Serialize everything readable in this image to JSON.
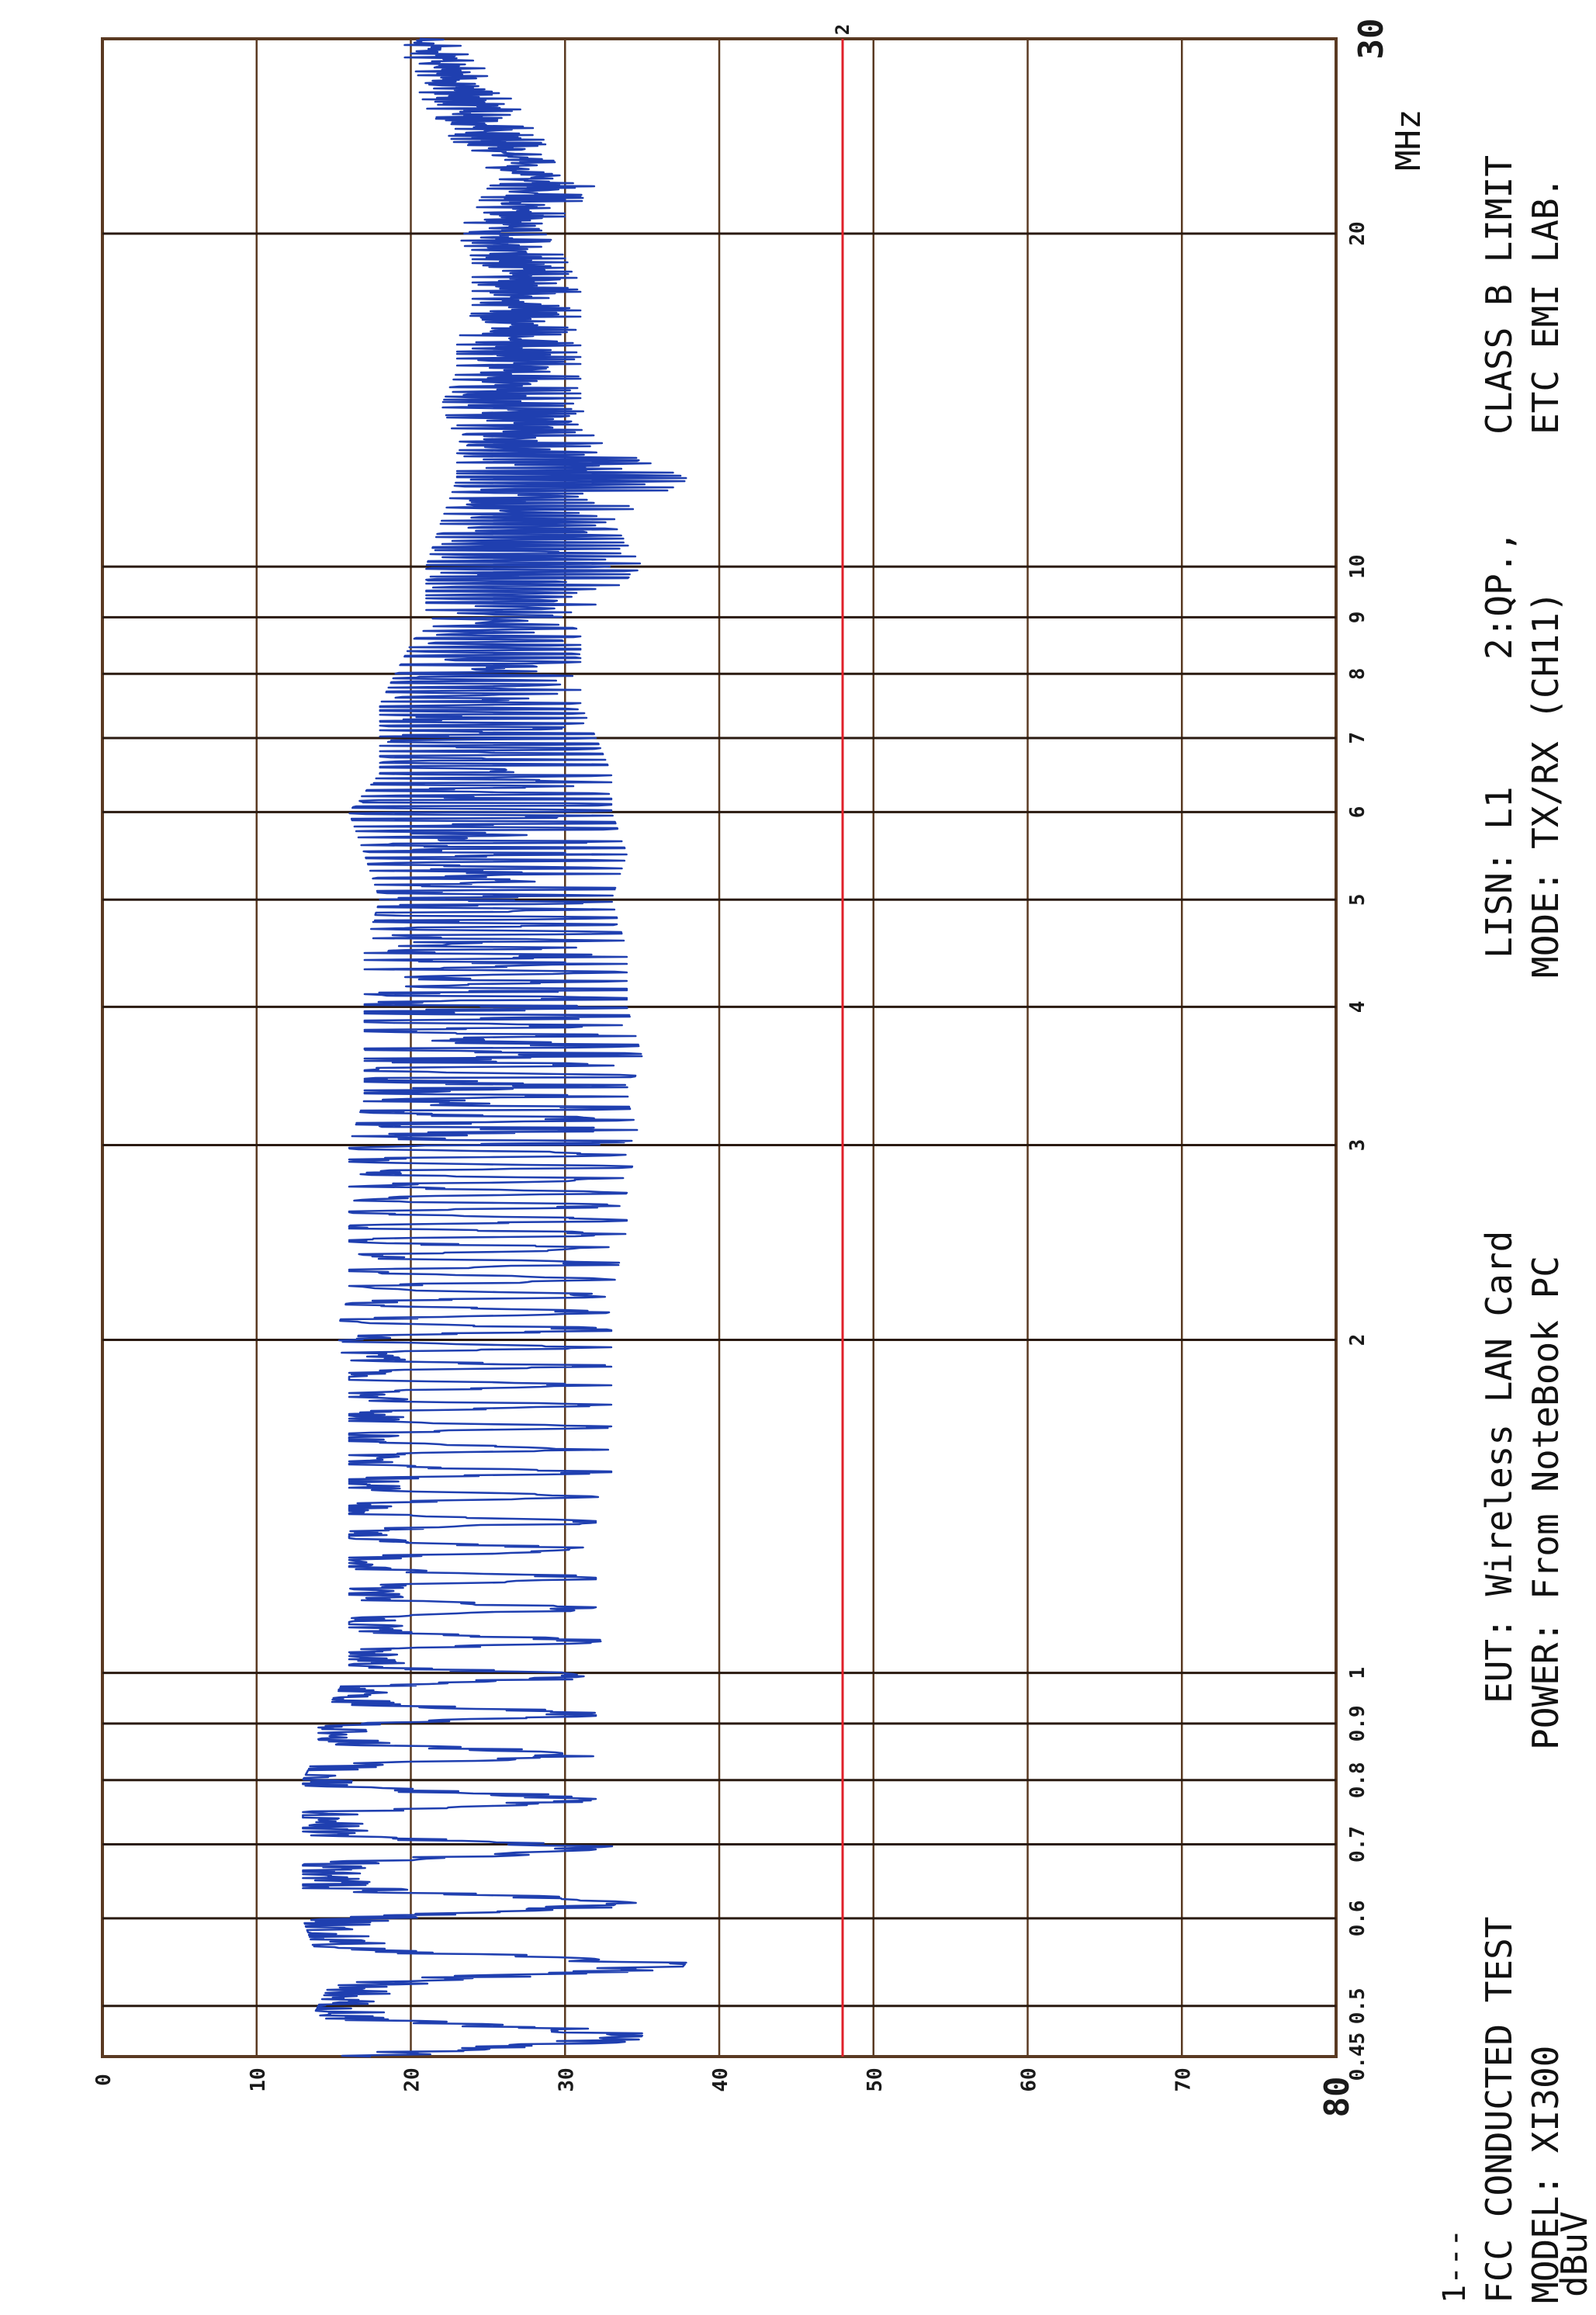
{
  "chart_data": {
    "type": "line",
    "orientation": "rotated-90-ccw",
    "ylabel": "dBuV",
    "xlabel": "MHz",
    "ylim": [
      0,
      80
    ],
    "xlim": [
      0.45,
      30
    ],
    "x_scale": "log",
    "grid": true,
    "y_ticks": [
      {
        "value": 0,
        "label": "0"
      },
      {
        "value": 10,
        "label": "10"
      },
      {
        "value": 20,
        "label": "20"
      },
      {
        "value": 30,
        "label": "30"
      },
      {
        "value": 40,
        "label": "40"
      },
      {
        "value": 50,
        "label": "50"
      },
      {
        "value": 60,
        "label": "60"
      },
      {
        "value": 70,
        "label": "70"
      },
      {
        "value": 80,
        "label": "80"
      }
    ],
    "x_ticks": [
      {
        "value": 0.45,
        "label": "0.45"
      },
      {
        "value": 0.5,
        "label": "0.5"
      },
      {
        "value": 0.6,
        "label": "0.6"
      },
      {
        "value": 0.7,
        "label": "0.7"
      },
      {
        "value": 0.8,
        "label": "0.8"
      },
      {
        "value": 0.9,
        "label": "0.9"
      },
      {
        "value": 1,
        "label": "1"
      },
      {
        "value": 2,
        "label": "2"
      },
      {
        "value": 3,
        "label": "3"
      },
      {
        "value": 4,
        "label": "4"
      },
      {
        "value": 5,
        "label": "5"
      },
      {
        "value": 6,
        "label": "6"
      },
      {
        "value": 7,
        "label": "7"
      },
      {
        "value": 8,
        "label": "8"
      },
      {
        "value": 9,
        "label": "9"
      },
      {
        "value": 10,
        "label": "10"
      },
      {
        "value": 20,
        "label": "20"
      },
      {
        "value": 30,
        "label": "30"
      }
    ],
    "limit_line": {
      "label": "2",
      "value": 48,
      "color": "#e0202a"
    },
    "series": [
      {
        "color": "#1f3fb0",
        "x": [
          0.45,
          0.47,
          0.5,
          0.53,
          0.55,
          0.6,
          0.65,
          0.7,
          0.75,
          0.8,
          0.85,
          0.9,
          0.95,
          1.0,
          1.1,
          1.2,
          1.3,
          1.4,
          1.5,
          1.6,
          1.7,
          1.8,
          1.9,
          2.0,
          2.2,
          2.5,
          2.8,
          3.0,
          3.3,
          3.6,
          4.0,
          4.5,
          5.0,
          5.5,
          6.0,
          6.5,
          7.0,
          7.5,
          8.0,
          8.5,
          9.0,
          9.5,
          10.0,
          11.0,
          12.0,
          13.0,
          14.0,
          15.0,
          16.0,
          17.0,
          18.0,
          19.0,
          20.0,
          22.0,
          24.0,
          26.0,
          28.0,
          30.0
        ],
        "min": [
          14,
          14,
          15,
          16,
          15,
          14,
          14,
          14,
          14,
          14,
          15,
          15,
          16,
          17,
          17,
          17,
          17,
          17,
          17,
          17,
          17,
          17,
          17,
          16,
          17,
          17,
          17,
          17,
          18,
          18,
          18,
          18,
          19,
          18,
          17,
          19,
          19,
          19,
          20,
          21,
          22,
          22,
          22,
          23,
          24,
          24,
          23,
          24,
          24,
          25,
          25,
          25,
          24,
          26,
          24,
          22,
          21,
          20
        ],
        "max": [
          33,
          34,
          35,
          36,
          37,
          34,
          33,
          32,
          31,
          31,
          31,
          31,
          31,
          32,
          31,
          31,
          31,
          31,
          32,
          32,
          32,
          32,
          32,
          32,
          32,
          33,
          33,
          34,
          33,
          34,
          33,
          33,
          32,
          33,
          32,
          32,
          31,
          30,
          30,
          30,
          30,
          32,
          34,
          32,
          37,
          31,
          30,
          30,
          30,
          30,
          30,
          29,
          28,
          31,
          28,
          26,
          24,
          22
        ]
      }
    ]
  },
  "footer": {
    "left_mark": "1---",
    "line1": {
      "test": "FCC CONDUCTED TEST",
      "eut": "EUT: Wireless LAN Card",
      "lisn": "LISN: L1",
      "detector": "2:QP.,",
      "limit": "CLASS B LIMIT"
    },
    "line2": {
      "model": "MODEL: XI300",
      "power": "POWER: From NoteBook PC",
      "mode": "MODE: TX/RX (CH11)",
      "lab": "ETC EMI LAB."
    }
  }
}
